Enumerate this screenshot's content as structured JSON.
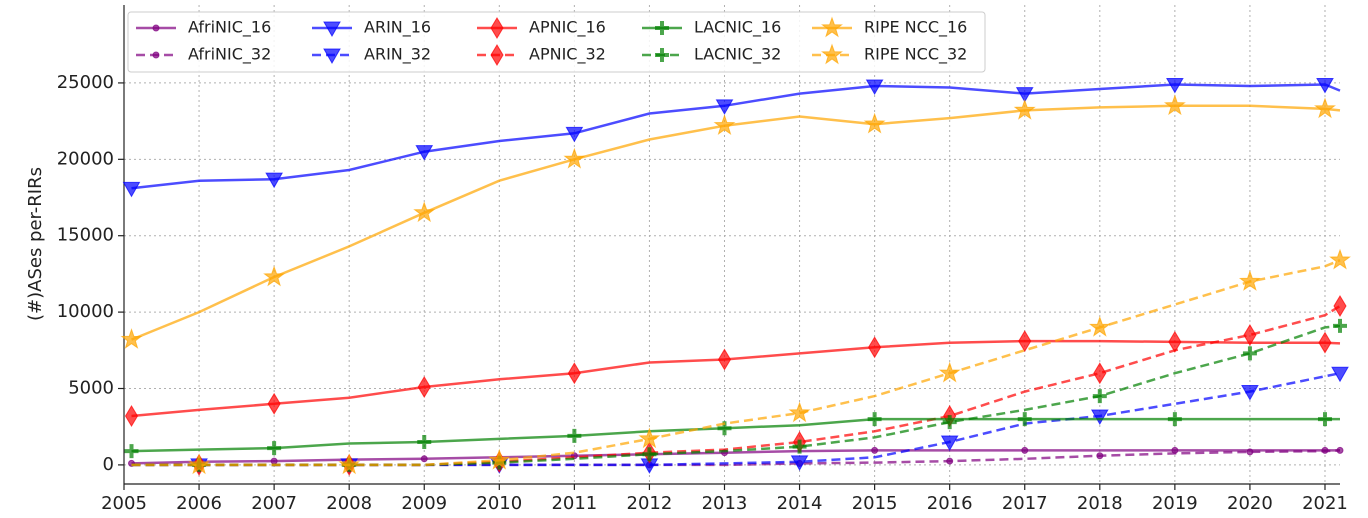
{
  "chart_data": {
    "type": "line",
    "y_label": "(#)ASes per-RIRs",
    "x": [
      2005.1,
      2006,
      2007,
      2008,
      2009,
      2010,
      2011,
      2012,
      2013,
      2014,
      2015,
      2016,
      2017,
      2018,
      2019,
      2020,
      2021,
      2021.2
    ],
    "series": [
      {
        "name": "AfriNIC_16",
        "color": "#800080",
        "marker": "o",
        "linestyle": "solid",
        "values": [
          100,
          200,
          250,
          350,
          400,
          500,
          600,
          700,
          800,
          900,
          950,
          950,
          950,
          950,
          950,
          950,
          950,
          950
        ]
      },
      {
        "name": "AfriNIC_32",
        "color": "#800080",
        "marker": "o",
        "linestyle": "dashed",
        "values": [
          0,
          0,
          0,
          0,
          0,
          0,
          0,
          0,
          0,
          100,
          150,
          250,
          400,
          600,
          750,
          850,
          900,
          950
        ]
      },
      {
        "name": "ARIN_16",
        "color": "#0000ff",
        "marker": "v",
        "linestyle": "solid",
        "values": [
          18100,
          18600,
          18700,
          19300,
          20500,
          21200,
          21700,
          23000,
          23500,
          24300,
          24800,
          24700,
          24300,
          24600,
          24900,
          24800,
          24900,
          24500
        ]
      },
      {
        "name": "ARIN_32",
        "color": "#0000ff",
        "marker": "v",
        "linestyle": "dashed",
        "values": [
          0,
          0,
          0,
          0,
          0,
          0,
          0,
          0,
          100,
          200,
          500,
          1500,
          2700,
          3200,
          4000,
          4800,
          5800,
          6000
        ]
      },
      {
        "name": "APNIC_16",
        "color": "#ff0000",
        "marker": "d",
        "linestyle": "solid",
        "values": [
          3200,
          3600,
          4000,
          4400,
          5100,
          5600,
          6000,
          6700,
          6900,
          7300,
          7700,
          8000,
          8100,
          8100,
          8050,
          8000,
          8000,
          7950
        ]
      },
      {
        "name": "APNIC_32",
        "color": "#ff0000",
        "marker": "d",
        "linestyle": "dashed",
        "values": [
          0,
          0,
          0,
          0,
          0,
          200,
          500,
          800,
          1000,
          1500,
          2200,
          3200,
          4800,
          6000,
          7500,
          8500,
          9800,
          10400
        ]
      },
      {
        "name": "LACNIC_16",
        "color": "#008000",
        "marker": "+",
        "linestyle": "solid",
        "values": [
          900,
          1000,
          1100,
          1400,
          1500,
          1700,
          1900,
          2200,
          2400,
          2600,
          3000,
          3000,
          3000,
          3000,
          3000,
          3000,
          3000,
          3000
        ]
      },
      {
        "name": "LACNIC_32",
        "color": "#008000",
        "marker": "+",
        "linestyle": "dashed",
        "values": [
          0,
          0,
          0,
          0,
          0,
          150,
          400,
          700,
          900,
          1200,
          1800,
          2800,
          3600,
          4500,
          6000,
          7300,
          9000,
          9100
        ]
      },
      {
        "name": "RIPE NCC_16",
        "color": "#ffa500",
        "marker": "*",
        "linestyle": "solid",
        "values": [
          8200,
          10000,
          12300,
          14300,
          16500,
          18600,
          20000,
          21300,
          22200,
          22800,
          22300,
          22700,
          23200,
          23400,
          23500,
          23500,
          23300,
          23200
        ]
      },
      {
        "name": "RIPE NCC_32",
        "color": "#ffa500",
        "marker": "*",
        "linestyle": "dashed",
        "values": [
          0,
          0,
          0,
          0,
          0,
          300,
          800,
          1700,
          2700,
          3400,
          4500,
          6000,
          7500,
          9000,
          10500,
          12000,
          13000,
          13400
        ]
      }
    ],
    "xlim": [
      2005,
      2021.2
    ],
    "xticks": [
      2005,
      2006,
      2007,
      2008,
      2009,
      2010,
      2011,
      2012,
      2013,
      2014,
      2015,
      2016,
      2017,
      2018,
      2019,
      2020,
      2021
    ],
    "ylim": [
      -1250,
      30100
    ],
    "yticks": [
      0,
      5000,
      10000,
      15000,
      20000,
      25000
    ],
    "grid": true,
    "legend": "upper left",
    "legend_columns": 5
  }
}
